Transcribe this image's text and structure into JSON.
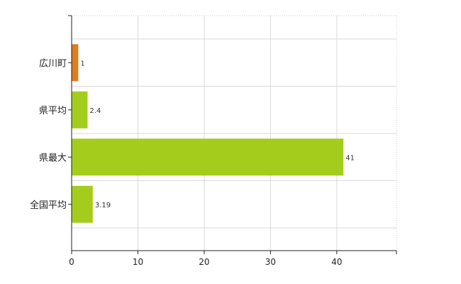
{
  "chart_data": {
    "type": "bar",
    "orientation": "horizontal",
    "categories": [
      "広川町",
      "県平均",
      "県最大",
      "全国平均"
    ],
    "values": [
      1,
      2.4,
      41,
      3.19
    ],
    "data_labels": [
      "1",
      "2.4",
      "41",
      "3.19"
    ],
    "colors": [
      "#e07b20",
      "#a4cc1c",
      "#a4cc1c",
      "#a4cc1c"
    ],
    "xlim": [
      0,
      49
    ],
    "xticks": [
      0,
      10,
      20,
      30,
      40
    ],
    "grid": true,
    "title": "",
    "xlabel": "",
    "ylabel": ""
  }
}
